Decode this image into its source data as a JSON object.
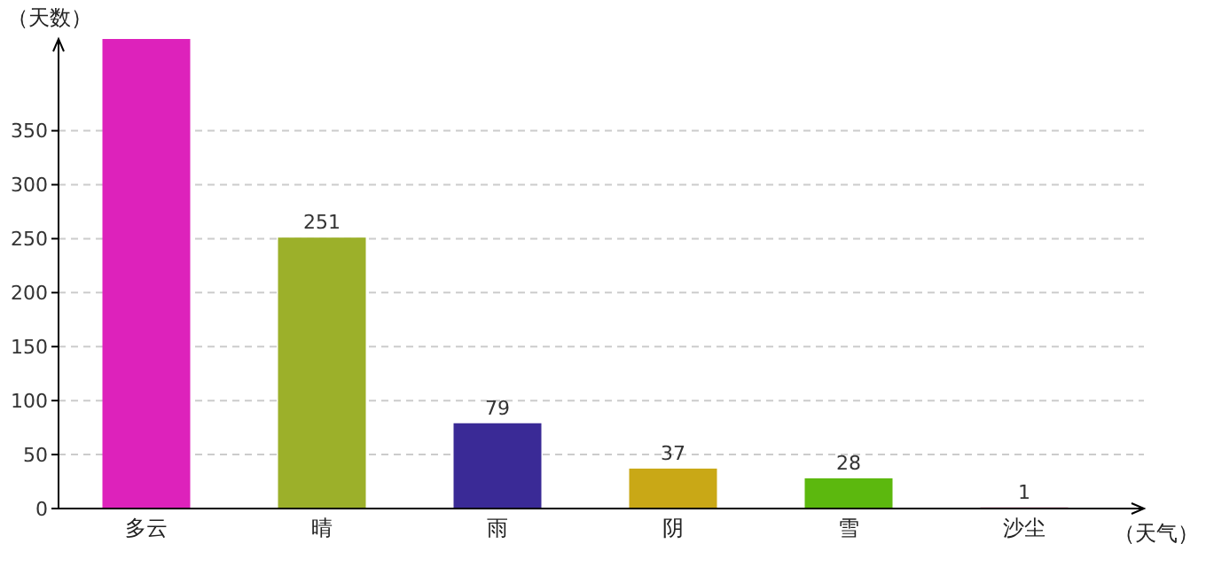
{
  "chart_data": {
    "type": "bar",
    "xlabel": "（天气）",
    "ylabel": "（天数）",
    "categories": [
      "多云",
      "晴",
      "雨",
      "阴",
      "雪",
      "沙尘"
    ],
    "values": [
      435,
      251,
      79,
      37,
      28,
      1
    ],
    "value_labels": [
      null,
      "251",
      "79",
      "37",
      "28",
      "1"
    ],
    "colors": [
      "#dd22bb",
      "#9cb02a",
      "#3a2a96",
      "#c9a816",
      "#5cb80e",
      "#b02050"
    ],
    "ylim": [
      0,
      435
    ],
    "yticks": [
      0,
      50,
      100,
      150,
      200,
      250,
      300,
      350
    ],
    "grid": "y"
  }
}
